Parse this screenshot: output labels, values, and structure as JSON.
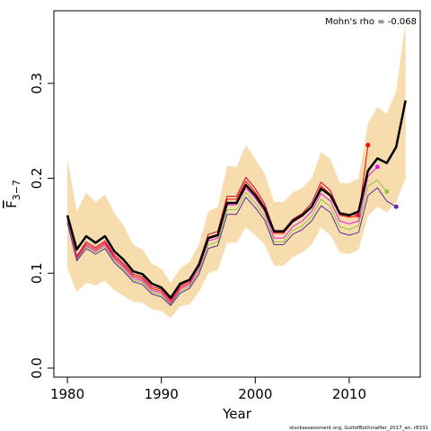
{
  "chart_data": {
    "type": "line",
    "ylabel": "F",
    "ylabel_subscript": "3−7",
    "xlabel": "Year",
    "annotation": "Mohn's rho = -0.068",
    "footer": "stockassessment.org, GulfofBothniaHer_2017_an, r8331",
    "x": [
      1980,
      1981,
      1982,
      1983,
      1984,
      1985,
      1986,
      1987,
      1988,
      1989,
      1990,
      1991,
      1992,
      1993,
      1994,
      1995,
      1996,
      1997,
      1998,
      1999,
      2000,
      2001,
      2002,
      2003,
      2004,
      2005,
      2006,
      2007,
      2008,
      2009,
      2010,
      2011,
      2012,
      2013,
      2014,
      2015,
      2016
    ],
    "xlim": [
      1978.56,
      2017.56
    ],
    "xticks": [
      1980,
      1990,
      2000,
      2010
    ],
    "ylim": [
      -0.0095,
      0.3765
    ],
    "yticks": [
      {
        "value": 0,
        "label": "0.0"
      },
      0.1,
      0.2,
      0.3
    ],
    "band": {
      "color": "#f7dcae",
      "upper": [
        0.22,
        0.165,
        0.185,
        0.175,
        0.183,
        0.163,
        0.15,
        0.13,
        0.125,
        0.11,
        0.105,
        0.09,
        0.105,
        0.112,
        0.13,
        0.165,
        0.17,
        0.213,
        0.212,
        0.235,
        0.22,
        0.205,
        0.175,
        0.175,
        0.185,
        0.19,
        0.2,
        0.228,
        0.22,
        0.195,
        0.195,
        0.2,
        0.258,
        0.275,
        0.268,
        0.292,
        0.365
      ],
      "lower": [
        0.105,
        0.08,
        0.09,
        0.087,
        0.092,
        0.082,
        0.076,
        0.07,
        0.069,
        0.062,
        0.06,
        0.053,
        0.065,
        0.067,
        0.08,
        0.1,
        0.103,
        0.132,
        0.132,
        0.148,
        0.14,
        0.13,
        0.108,
        0.108,
        0.117,
        0.122,
        0.13,
        0.148,
        0.14,
        0.122,
        0.12,
        0.125,
        0.16,
        0.17,
        0.164,
        0.175,
        0.2
      ]
    },
    "series": [
      {
        "color": "#cc0033",
        "values": [
          0.158,
          0.118,
          0.133,
          0.127,
          0.134,
          0.119,
          0.11,
          0.099,
          0.096,
          0.086,
          0.083,
          0.072,
          0.087,
          0.092,
          0.111,
          0.141,
          0.144,
          0.181,
          0.181,
          0.201,
          0.189,
          0.173,
          0.145,
          0.145,
          0.157,
          0.163,
          0.174,
          0.196,
          0.187,
          0.164,
          0.162,
          0.161,
          null,
          null,
          null,
          null,
          null
        ]
      },
      {
        "color": "#ff0000",
        "values": [
          0.156,
          0.116,
          0.131,
          0.125,
          0.132,
          0.117,
          0.108,
          0.097,
          0.094,
          0.084,
          0.081,
          0.07,
          0.085,
          0.09,
          0.108,
          0.138,
          0.141,
          0.178,
          0.178,
          0.197,
          0.185,
          0.17,
          0.142,
          0.142,
          0.154,
          0.16,
          0.17,
          0.192,
          0.183,
          0.161,
          0.159,
          0.16,
          0.235,
          null,
          null,
          null,
          null
        ]
      },
      {
        "color": "#e619e6",
        "values": [
          0.155,
          0.115,
          0.129,
          0.123,
          0.13,
          0.115,
          0.106,
          0.095,
          0.092,
          0.082,
          0.079,
          0.068,
          0.083,
          0.088,
          0.105,
          0.134,
          0.137,
          0.172,
          0.172,
          0.19,
          0.179,
          0.165,
          0.137,
          0.137,
          0.149,
          0.155,
          0.165,
          0.184,
          0.176,
          0.155,
          0.152,
          0.155,
          0.202,
          0.212,
          null,
          null,
          null
        ]
      },
      {
        "color": "#8cc63f",
        "values": [
          0.154,
          0.114,
          0.128,
          0.122,
          0.128,
          0.113,
          0.104,
          0.093,
          0.09,
          0.08,
          0.077,
          0.067,
          0.081,
          0.086,
          0.102,
          0.13,
          0.133,
          0.167,
          0.167,
          0.185,
          0.174,
          0.16,
          0.133,
          0.133,
          0.145,
          0.15,
          0.16,
          0.178,
          0.17,
          0.149,
          0.146,
          0.15,
          0.192,
          0.198,
          0.186,
          null,
          null
        ]
      },
      {
        "color": "#5b2a9e",
        "values": [
          0.153,
          0.113,
          0.126,
          0.12,
          0.126,
          0.111,
          0.102,
          0.091,
          0.088,
          0.078,
          0.075,
          0.066,
          0.079,
          0.084,
          0.099,
          0.126,
          0.129,
          0.162,
          0.162,
          0.18,
          0.169,
          0.156,
          0.13,
          0.13,
          0.141,
          0.146,
          0.155,
          0.171,
          0.164,
          0.143,
          0.14,
          0.143,
          0.182,
          0.19,
          0.176,
          0.17,
          null
        ]
      },
      {
        "color": "#000000",
        "width": 2.5,
        "values": [
          0.161,
          0.125,
          0.139,
          0.132,
          0.139,
          0.123,
          0.114,
          0.102,
          0.099,
          0.089,
          0.085,
          0.074,
          0.089,
          0.093,
          0.109,
          0.137,
          0.14,
          0.174,
          0.174,
          0.193,
          0.182,
          0.168,
          0.144,
          0.144,
          0.155,
          0.161,
          0.17,
          0.189,
          0.182,
          0.163,
          0.161,
          0.165,
          0.208,
          0.221,
          0.216,
          0.233,
          0.282
        ]
      }
    ]
  }
}
